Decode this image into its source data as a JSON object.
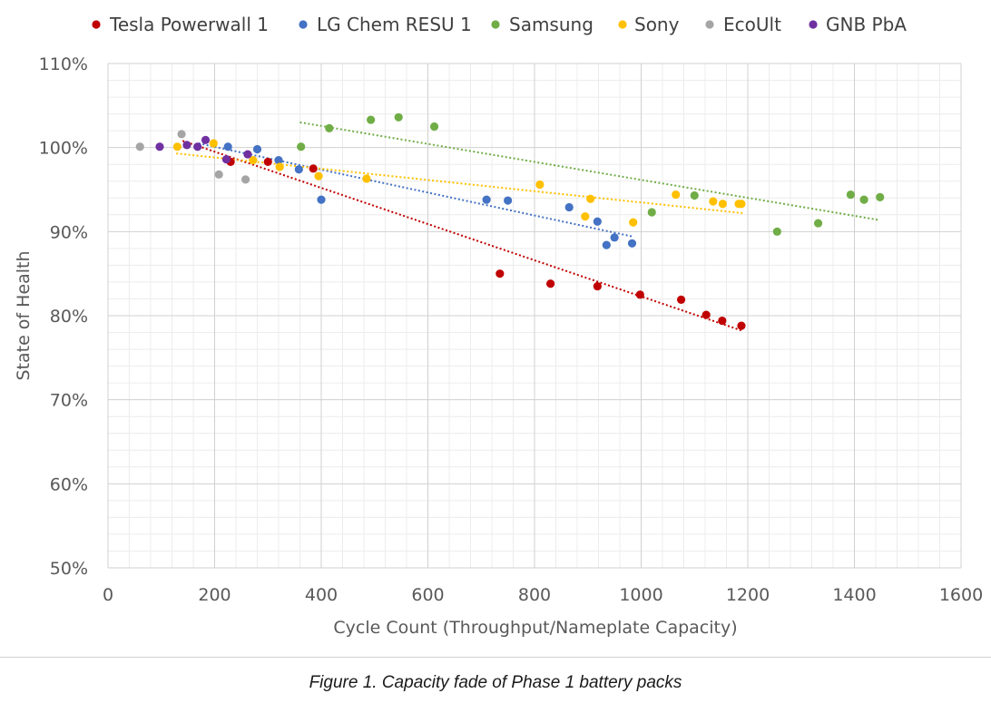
{
  "caption": "Figure 1. Capacity fade of Phase 1 battery packs",
  "chart_data": {
    "type": "scatter",
    "title": "",
    "xlabel": "Cycle Count (Throughput/Nameplate  Capacity)",
    "ylabel": "State of Health",
    "xlim": [
      0,
      1600
    ],
    "ylim": [
      0.5,
      1.1
    ],
    "x_ticks": [
      0,
      200,
      400,
      600,
      800,
      1000,
      1200,
      1400,
      1600
    ],
    "y_ticks": [
      0.5,
      0.6,
      0.7,
      0.8,
      0.9,
      1.0,
      1.1
    ],
    "x_tick_labels": [
      "0",
      "200",
      "400",
      "600",
      "800",
      "1000",
      "1200",
      "1400",
      "1600"
    ],
    "y_tick_labels": [
      "50%",
      "60%",
      "70%",
      "80%",
      "90%",
      "100%",
      "110%"
    ],
    "grid": true,
    "legend_position": "top",
    "series": [
      {
        "name": "Tesla Powerwall 1",
        "color": "#c00000",
        "trendline": true,
        "x": [
          230,
          300,
          385,
          735,
          830,
          918,
          998,
          1075,
          1122,
          1152,
          1188
        ],
        "y": [
          0.983,
          0.983,
          0.975,
          0.85,
          0.838,
          0.835,
          0.825,
          0.819,
          0.801,
          0.794,
          0.788
        ]
      },
      {
        "name": "LG Chem RESU 1",
        "color": "#4472c4",
        "trendline": true,
        "x": [
          225,
          280,
          320,
          358,
          400,
          710,
          750,
          865,
          918,
          935,
          950,
          983
        ],
        "y": [
          1.001,
          0.998,
          0.985,
          0.974,
          0.938,
          0.938,
          0.937,
          0.929,
          0.912,
          0.884,
          0.893,
          0.886
        ]
      },
      {
        "name": "Samsung",
        "color": "#70ad47",
        "trendline": true,
        "x": [
          362,
          415,
          493,
          545,
          612,
          1020,
          1100,
          1255,
          1332,
          1393,
          1418,
          1448
        ],
        "y": [
          1.001,
          1.023,
          1.033,
          1.036,
          1.025,
          0.923,
          0.943,
          0.9,
          0.91,
          0.944,
          0.938,
          0.941
        ]
      },
      {
        "name": "Sony",
        "color": "#ffc000",
        "trendline": true,
        "x": [
          130,
          198,
          272,
          322,
          395,
          485,
          810,
          895,
          905,
          985,
          1065,
          1135,
          1153,
          1183,
          1188
        ],
        "y": [
          1.001,
          1.005,
          0.985,
          0.977,
          0.966,
          0.963,
          0.956,
          0.918,
          0.939,
          0.911,
          0.944,
          0.936,
          0.933,
          0.933,
          0.933
        ]
      },
      {
        "name": "EcoUlt",
        "color": "#a5a5a5",
        "trendline": false,
        "x": [
          60,
          138,
          208,
          258
        ],
        "y": [
          1.001,
          1.016,
          0.968,
          0.962
        ]
      },
      {
        "name": "GNB PbA",
        "color": "#7030a0",
        "trendline": false,
        "x": [
          97,
          148,
          168,
          183,
          222,
          262
        ],
        "y": [
          1.001,
          1.003,
          1.001,
          1.009,
          0.986,
          0.992
        ]
      }
    ],
    "trendlines": [
      {
        "series": "Tesla Powerwall 1",
        "x": [
          140,
          1190
        ],
        "y": [
          1.008,
          0.782
        ]
      },
      {
        "series": "LG Chem RESU 1",
        "x": [
          170,
          985
        ],
        "y": [
          1.005,
          0.894
        ]
      },
      {
        "series": "Samsung",
        "x": [
          360,
          1445
        ],
        "y": [
          1.03,
          0.914
        ]
      },
      {
        "series": "Sony",
        "x": [
          128,
          1190
        ],
        "y": [
          0.993,
          0.922
        ]
      }
    ]
  }
}
